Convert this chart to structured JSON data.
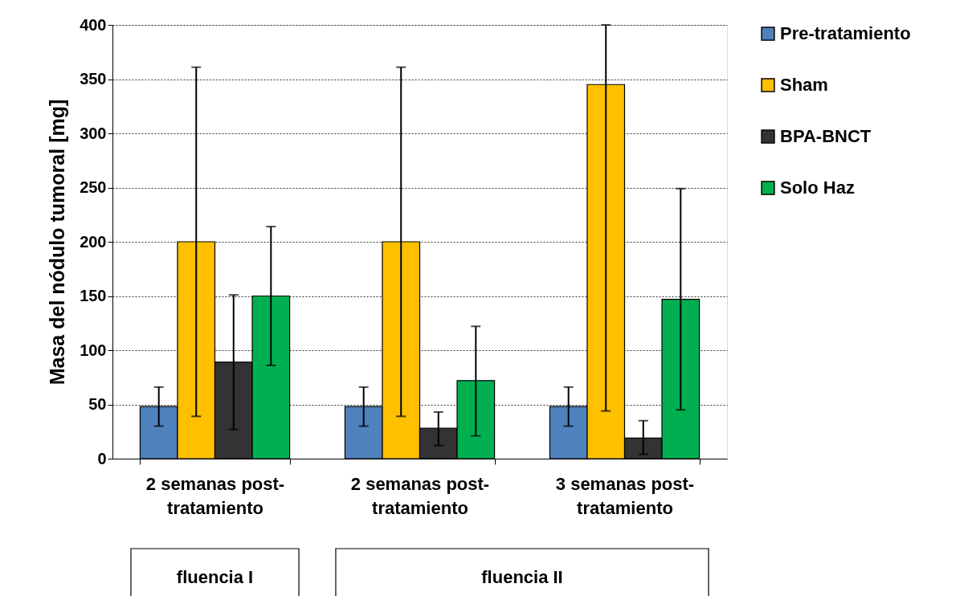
{
  "chart_data": {
    "type": "bar",
    "ylabel": "Masa del nódulo tumoral [mg]",
    "categories": [
      "2 semanas post-tratamiento",
      "2 semanas post-tratamiento",
      "3 semanas post-tratamiento"
    ],
    "series": [
      {
        "name": "Pre-tratamiento",
        "color": "#4f81bd",
        "values": [
          48,
          48,
          48
        ],
        "errors": [
          [
            30,
            66
          ],
          [
            30,
            66
          ],
          [
            30,
            66
          ]
        ]
      },
      {
        "name": "Sham",
        "color": "#ffc000",
        "values": [
          200,
          200,
          345
        ],
        "errors": [
          [
            39,
            361
          ],
          [
            39,
            361
          ],
          [
            44,
            400
          ]
        ]
      },
      {
        "name": "BPA-BNCT",
        "color": "#333333",
        "values": [
          89,
          28,
          19
        ],
        "errors": [
          [
            27,
            151
          ],
          [
            12,
            43
          ],
          [
            4,
            35
          ]
        ]
      },
      {
        "name": "Solo Haz",
        "color": "#00b050",
        "values": [
          150,
          72,
          147
        ],
        "errors": [
          [
            86,
            214
          ],
          [
            21,
            122
          ],
          [
            45,
            249
          ]
        ]
      }
    ],
    "ylim": [
      0,
      400
    ],
    "yticks": [
      0,
      50,
      100,
      150,
      200,
      250,
      300,
      350,
      400
    ],
    "grid": "y",
    "legend": "right",
    "annotations": [
      "fluencia I",
      "fluencia II"
    ]
  }
}
